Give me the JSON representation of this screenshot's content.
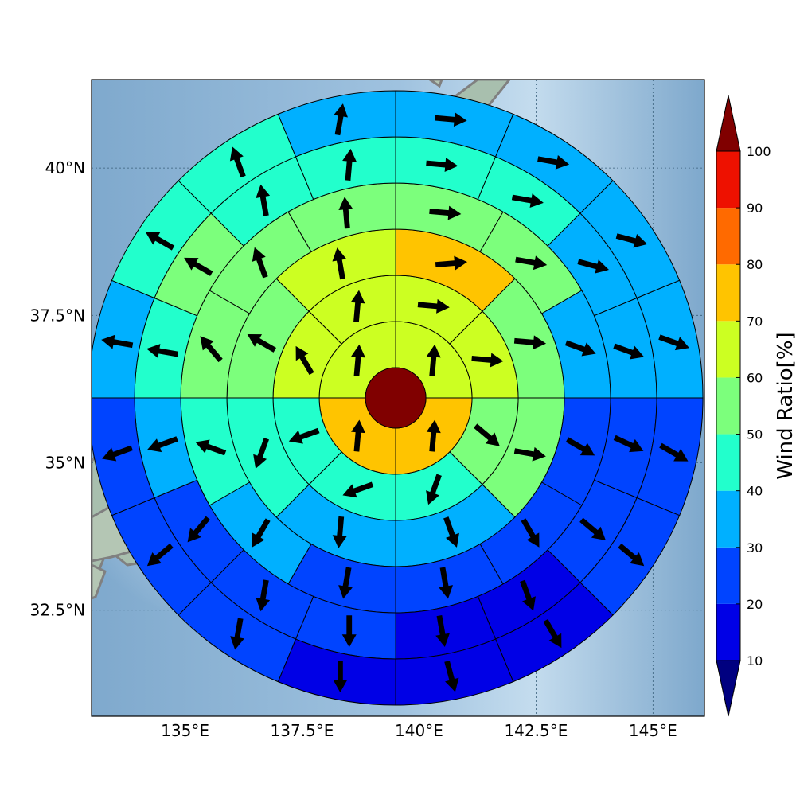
{
  "map": {
    "lon_range": [
      133.0,
      146.1
    ],
    "lat_range": [
      30.7,
      41.5
    ],
    "lon_ticks": [
      {
        "value": 135.0,
        "label": "135°E"
      },
      {
        "value": 137.5,
        "label": "137.5°E"
      },
      {
        "value": 140.0,
        "label": "140°E"
      },
      {
        "value": 142.5,
        "label": "142.5°E"
      },
      {
        "value": 145.0,
        "label": "145°E"
      }
    ],
    "lat_ticks": [
      {
        "value": 32.5,
        "label": "32.5°N"
      },
      {
        "value": 35.0,
        "label": "35°N"
      },
      {
        "value": 37.5,
        "label": "37.5°N"
      },
      {
        "value": 40.0,
        "label": "40°N"
      }
    ],
    "gridlines": true,
    "center": {
      "lon": 139.5,
      "lat": 36.1
    },
    "ring_sector_counts": [
      4,
      8,
      8,
      12,
      16,
      16
    ],
    "rings": [
      {
        "sectors": 4,
        "values": [
          65,
          75,
          75,
          65
        ]
      },
      {
        "sectors": 8,
        "values": [
          65,
          65,
          55,
          45,
          45,
          45,
          65,
          65
        ]
      },
      {
        "sectors": 8,
        "values": [
          75,
          55,
          55,
          35,
          35,
          45,
          55,
          65
        ]
      },
      {
        "sectors": 12,
        "values": [
          55,
          55,
          35,
          25,
          25,
          25,
          25,
          35,
          45,
          55,
          55,
          55
        ]
      },
      {
        "sectors": 16,
        "values": [
          45,
          45,
          35,
          35,
          25,
          25,
          15,
          15,
          25,
          25,
          25,
          35,
          45,
          55,
          45,
          45
        ]
      },
      {
        "sectors": 16,
        "values": [
          35,
          35,
          35,
          35,
          25,
          25,
          15,
          15,
          15,
          25,
          25,
          25,
          35,
          45,
          45,
          35
        ]
      }
    ],
    "arrow_directions_deg": [
      [
        5,
        5,
        5,
        5
      ],
      [
        95,
        95,
        130,
        200,
        250,
        250,
        330,
        5
      ],
      [
        85,
        95,
        100,
        160,
        185,
        200,
        300,
        350
      ],
      [
        95,
        100,
        110,
        120,
        150,
        170,
        190,
        210,
        290,
        320,
        340,
        355
      ],
      [
        95,
        100,
        105,
        110,
        115,
        130,
        160,
        170,
        180,
        190,
        220,
        250,
        280,
        300,
        350,
        5
      ],
      [
        95,
        100,
        105,
        110,
        120,
        130,
        150,
        165,
        180,
        190,
        230,
        250,
        280,
        300,
        340,
        10
      ]
    ]
  },
  "colorbar": {
    "label": "Wind Ratio[%]",
    "ticks": [
      "10",
      "20",
      "30",
      "40",
      "50",
      "60",
      "70",
      "80",
      "90",
      "100"
    ],
    "colors": [
      "#0000e6",
      "#0044ff",
      "#00b0ff",
      "#22ffcc",
      "#7cff7c",
      "#ccff22",
      "#ffc400",
      "#ff6a00",
      "#ee1100"
    ],
    "under_color": "#000080",
    "over_color": "#800000",
    "center_color": "#800000"
  }
}
